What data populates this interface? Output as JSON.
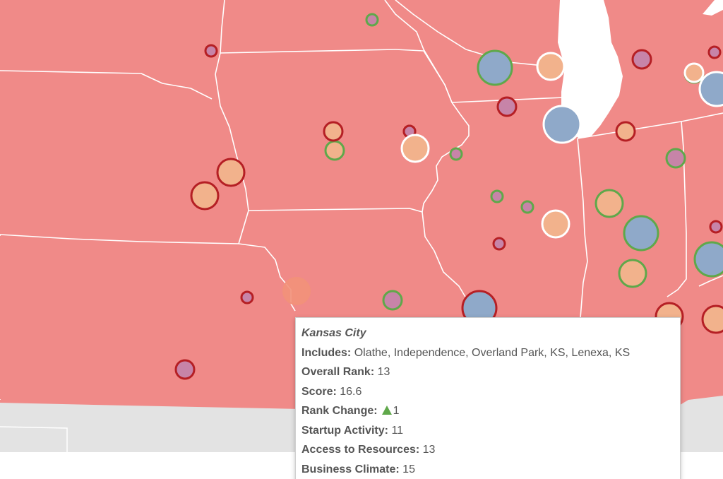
{
  "colors": {
    "state_fill": "#f08a88",
    "outside_fill": "#e3e3e3",
    "lake_fill": "#ffffff",
    "border_stroke": "#ffffff",
    "rank_up": "#5fa84a",
    "rank_down": "#b51f24",
    "rank_new": "#ffffff",
    "score_blue": "#8fa9c9",
    "score_orange": "#f2b28c",
    "score_purple": "#c784a8",
    "selected": "#f2917a"
  },
  "markers": [
    {
      "city": "marker-1",
      "fill": "score_purple",
      "ring": "rank_down",
      "size": "xs"
    },
    {
      "city": "marker-2",
      "fill": "score_purple",
      "ring": "rank_up",
      "size": "xs"
    },
    {
      "city": "marker-3",
      "fill": "score_blue",
      "ring": "rank_up",
      "size": "lg"
    },
    {
      "city": "marker-4",
      "fill": "score_orange",
      "ring": "rank_new",
      "size": "md"
    },
    {
      "city": "marker-5",
      "fill": "score_purple",
      "ring": "rank_down",
      "size": "sm"
    },
    {
      "city": "marker-6",
      "fill": "score_blue",
      "ring": "rank_new",
      "size": "xl"
    },
    {
      "city": "marker-7",
      "fill": "score_orange",
      "ring": "rank_down",
      "size": "sm"
    },
    {
      "city": "marker-8",
      "fill": "score_purple",
      "ring": "rank_down",
      "size": "xs"
    },
    {
      "city": "marker-9",
      "fill": "score_purple",
      "ring": "rank_down",
      "size": "sm"
    },
    {
      "city": "marker-10",
      "fill": "score_orange",
      "ring": "rank_up",
      "size": "sm"
    },
    {
      "city": "marker-11",
      "fill": "score_purple",
      "ring": "rank_down",
      "size": "xs"
    },
    {
      "city": "marker-12",
      "fill": "score_orange",
      "ring": "rank_up",
      "size": "sm"
    },
    {
      "city": "marker-13",
      "fill": "score_purple",
      "ring": "rank_up",
      "size": "xs"
    },
    {
      "city": "marker-14",
      "fill": "score_orange",
      "ring": "rank_down",
      "size": "md"
    },
    {
      "city": "marker-15",
      "fill": "score_orange",
      "ring": "rank_down",
      "size": "md"
    },
    {
      "city": "marker-16",
      "fill": "score_purple",
      "ring": "rank_up",
      "size": "xs"
    },
    {
      "city": "marker-17",
      "fill": "score_purple",
      "ring": "rank_up",
      "size": "xs"
    },
    {
      "city": "marker-18",
      "fill": "score_orange",
      "ring": "rank_new",
      "size": "md"
    },
    {
      "city": "marker-19",
      "fill": "score_purple",
      "ring": "rank_down",
      "size": "xs"
    },
    {
      "city": "marker-20",
      "fill": "score_purple",
      "ring": "rank_down",
      "size": "xs"
    },
    {
      "city": "marker-21",
      "fill": "score_purple",
      "ring": "rank_up",
      "size": "sm"
    },
    {
      "city": "marker-22",
      "fill": "score_blue",
      "ring": "rank_down",
      "size": "lg"
    },
    {
      "city": "marker-23",
      "fill": "score_purple",
      "ring": "rank_down",
      "size": "xs"
    },
    {
      "city": "marker-24",
      "fill": "score_orange",
      "ring": "rank_down",
      "size": "sm"
    },
    {
      "city": "marker-25",
      "fill": "score_purple",
      "ring": "rank_up",
      "size": "sm"
    },
    {
      "city": "marker-26",
      "fill": "score_orange",
      "ring": "rank_up",
      "size": "md"
    },
    {
      "city": "marker-27",
      "fill": "score_blue",
      "ring": "rank_up",
      "size": "lg"
    },
    {
      "city": "marker-28",
      "fill": "score_orange",
      "ring": "rank_up",
      "size": "md"
    },
    {
      "city": "marker-29",
      "fill": "score_orange",
      "ring": "rank_down",
      "size": "md"
    },
    {
      "city": "marker-30",
      "fill": "score_purple",
      "ring": "rank_down",
      "size": "sm"
    },
    {
      "city": "marker-31",
      "fill": "score_blue",
      "ring": "rank_up",
      "size": "lg"
    },
    {
      "city": "marker-32",
      "fill": "score_orange",
      "ring": "rank_new",
      "size": "sm"
    },
    {
      "city": "marker-33",
      "fill": "score_blue",
      "ring": "rank_new",
      "size": "lg"
    },
    {
      "city": "marker-34",
      "fill": "score_purple",
      "ring": "rank_down",
      "size": "xs"
    },
    {
      "city": "marker-35",
      "fill": "score_orange",
      "ring": "rank_down",
      "size": "md"
    },
    {
      "city": "marker-36",
      "fill": "score_orange",
      "ring": "rank_new",
      "size": "md"
    },
    {
      "city": "kansas-city",
      "fill": "selected",
      "ring": "selected",
      "size": "md",
      "selected": true
    }
  ],
  "tooltip": {
    "city": "Kansas City",
    "includes_label": "Includes:",
    "includes": "Olathe, Independence, Overland Park, KS, Lenexa, KS",
    "overall_rank_label": "Overall Rank:",
    "overall_rank": "13",
    "score_label": "Score:",
    "score": "16.6",
    "rank_change_label": "Rank Change:",
    "rank_change": "1",
    "rank_change_direction": "up",
    "startup_activity_label": "Startup Activity:",
    "startup_activity": "11",
    "access_to_resources_label": "Access to Resources:",
    "access_to_resources": "13",
    "business_climate_label": "Business Climate:",
    "business_climate": "15"
  }
}
